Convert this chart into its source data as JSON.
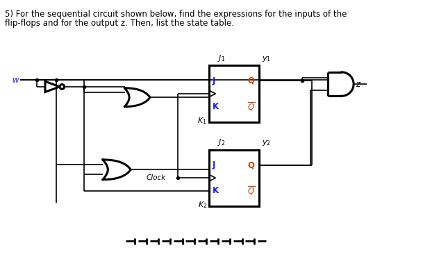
{
  "bg_color": "#ffffff",
  "fig_width": 6.09,
  "fig_height": 3.73,
  "dpi": 100,
  "title_line1": "5) For the sequential circuit shown below, find the expressions for the inputs of the",
  "title_line2": "flip-flops and for the output z. Then, list the state table.",
  "w_label": "w",
  "z_label": "z",
  "J1_label": "J_1",
  "K1_label": "K_1",
  "y1_label": "y_1",
  "J2_label": "J_2",
  "K2_label": "K_2",
  "y2_label": "y_2",
  "Clock_label": "Clock",
  "J_ff": "J",
  "Q_ff": "Q",
  "K_ff": "K",
  "Qbar_ff": "\\overline{Q}"
}
